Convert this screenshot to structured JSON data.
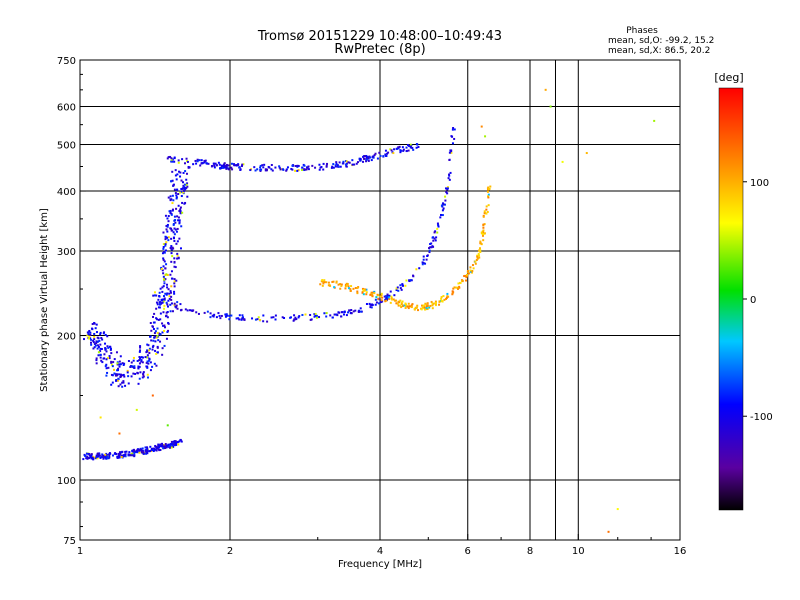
{
  "chart_data": {
    "type": "scatter",
    "title": "Tromsø 20151229 10:48:00–10:49:43",
    "subtitle": "RwPretec (8p)",
    "xlabel": "Frequency [MHz]",
    "ylabel": "Stationary phase Virtual Height [km]",
    "xscale": "log",
    "yscale": "log",
    "xlim": [
      1,
      16
    ],
    "ylim": [
      75,
      750
    ],
    "xticks": [
      {
        "value": 1,
        "label": "1"
      },
      {
        "value": 2,
        "label": "2"
      },
      {
        "value": 4,
        "label": "4"
      },
      {
        "value": 6,
        "label": "6"
      },
      {
        "value": 8,
        "label": "8"
      },
      {
        "value": 10,
        "label": "10"
      },
      {
        "value": 16,
        "label": "16"
      }
    ],
    "xgrid": [
      2,
      4,
      6,
      8,
      9,
      10
    ],
    "yticks": [
      {
        "value": 75,
        "label": "75"
      },
      {
        "value": 100,
        "label": "100"
      },
      {
        "value": 200,
        "label": "200"
      },
      {
        "value": 300,
        "label": "300"
      },
      {
        "value": 400,
        "label": "400"
      },
      {
        "value": 500,
        "label": "500"
      },
      {
        "value": 600,
        "label": "600"
      },
      {
        "value": 750,
        "label": "750"
      }
    ],
    "ygrid": [
      100,
      200,
      300,
      400,
      500,
      600
    ],
    "grid": true,
    "stats": {
      "heading": "Phases",
      "line_o": "mean, sd,O: -99.2, 15.2",
      "line_x": "mean, sd,X:  86.5, 20.2"
    },
    "colorbar": {
      "label": "[deg]",
      "range": [
        -180,
        180
      ],
      "ticks": [
        {
          "value": 100,
          "label": "100"
        },
        {
          "value": 0,
          "label": "0"
        },
        {
          "value": -100,
          "label": "-100"
        }
      ]
    },
    "traces": [
      {
        "name": "o-f-layer-upper",
        "phase": -100,
        "points": [
          [
            1.48,
            465
          ],
          [
            1.6,
            462
          ],
          [
            1.75,
            458
          ],
          [
            1.9,
            452
          ],
          [
            2.0,
            450
          ],
          [
            2.15,
            448
          ],
          [
            2.3,
            447
          ],
          [
            2.5,
            447
          ],
          [
            2.7,
            447
          ],
          [
            2.9,
            448
          ],
          [
            3.1,
            450
          ],
          [
            3.3,
            453
          ],
          [
            3.5,
            458
          ],
          [
            3.7,
            465
          ],
          [
            3.9,
            473
          ],
          [
            4.2,
            482
          ],
          [
            4.5,
            490
          ],
          [
            4.8,
            496
          ]
        ]
      },
      {
        "name": "o-f-layer-lower",
        "phase": -100,
        "points": [
          [
            1.4,
            245
          ],
          [
            1.5,
            235
          ],
          [
            1.6,
            229
          ],
          [
            1.75,
            223
          ],
          [
            1.9,
            220
          ],
          [
            2.05,
            218
          ],
          [
            2.2,
            217
          ],
          [
            2.4,
            217
          ],
          [
            2.6,
            217
          ],
          [
            2.8,
            218
          ],
          [
            3.0,
            219
          ],
          [
            3.2,
            221
          ],
          [
            3.4,
            223
          ],
          [
            3.6,
            226
          ],
          [
            3.8,
            230
          ],
          [
            4.0,
            236
          ],
          [
            4.2,
            243
          ],
          [
            4.4,
            252
          ],
          [
            4.6,
            262
          ],
          [
            4.8,
            276
          ],
          [
            5.0,
            295
          ],
          [
            5.15,
            320
          ],
          [
            5.3,
            355
          ],
          [
            5.4,
            390
          ],
          [
            5.5,
            430
          ],
          [
            5.55,
            470
          ],
          [
            5.6,
            510
          ],
          [
            5.65,
            550
          ]
        ]
      },
      {
        "name": "x-f-layer",
        "phase": 100,
        "points": [
          [
            3.0,
            258
          ],
          [
            3.2,
            256
          ],
          [
            3.4,
            253
          ],
          [
            3.6,
            249
          ],
          [
            3.8,
            245
          ],
          [
            4.0,
            241
          ],
          [
            4.2,
            237
          ],
          [
            4.4,
            233
          ],
          [
            4.6,
            230
          ],
          [
            4.8,
            229
          ],
          [
            5.0,
            230
          ],
          [
            5.2,
            234
          ],
          [
            5.4,
            240
          ],
          [
            5.6,
            248
          ],
          [
            5.8,
            258
          ],
          [
            6.0,
            268
          ],
          [
            6.2,
            280
          ],
          [
            6.35,
            300
          ],
          [
            6.45,
            330
          ],
          [
            6.55,
            370
          ],
          [
            6.65,
            420
          ]
        ]
      },
      {
        "name": "e-layer",
        "phase": -100,
        "points": [
          [
            1.02,
            112
          ],
          [
            1.1,
            112
          ],
          [
            1.2,
            113
          ],
          [
            1.3,
            114
          ],
          [
            1.4,
            116
          ],
          [
            1.5,
            118
          ],
          [
            1.6,
            120
          ]
        ]
      },
      {
        "name": "spread-f-region",
        "phase": -100,
        "points": [
          [
            1.05,
            205
          ],
          [
            1.1,
            190
          ],
          [
            1.15,
            175
          ],
          [
            1.2,
            165
          ],
          [
            1.3,
            170
          ],
          [
            1.4,
            185
          ],
          [
            1.45,
            210
          ],
          [
            1.5,
            250
          ],
          [
            1.52,
            300
          ],
          [
            1.55,
            350
          ],
          [
            1.58,
            400
          ],
          [
            1.6,
            440
          ]
        ]
      },
      {
        "name": "sporadic-echoes",
        "phase": 80,
        "points": [
          [
            1.1,
            135
          ],
          [
            1.2,
            125
          ],
          [
            1.3,
            140
          ],
          [
            1.4,
            150
          ],
          [
            1.5,
            130
          ],
          [
            6.4,
            545
          ],
          [
            6.5,
            520
          ],
          [
            8.6,
            650
          ],
          [
            8.8,
            600
          ],
          [
            9.3,
            460
          ],
          [
            10.4,
            480
          ],
          [
            11.5,
            78
          ],
          [
            12.0,
            87
          ],
          [
            14.2,
            560
          ]
        ]
      }
    ]
  }
}
